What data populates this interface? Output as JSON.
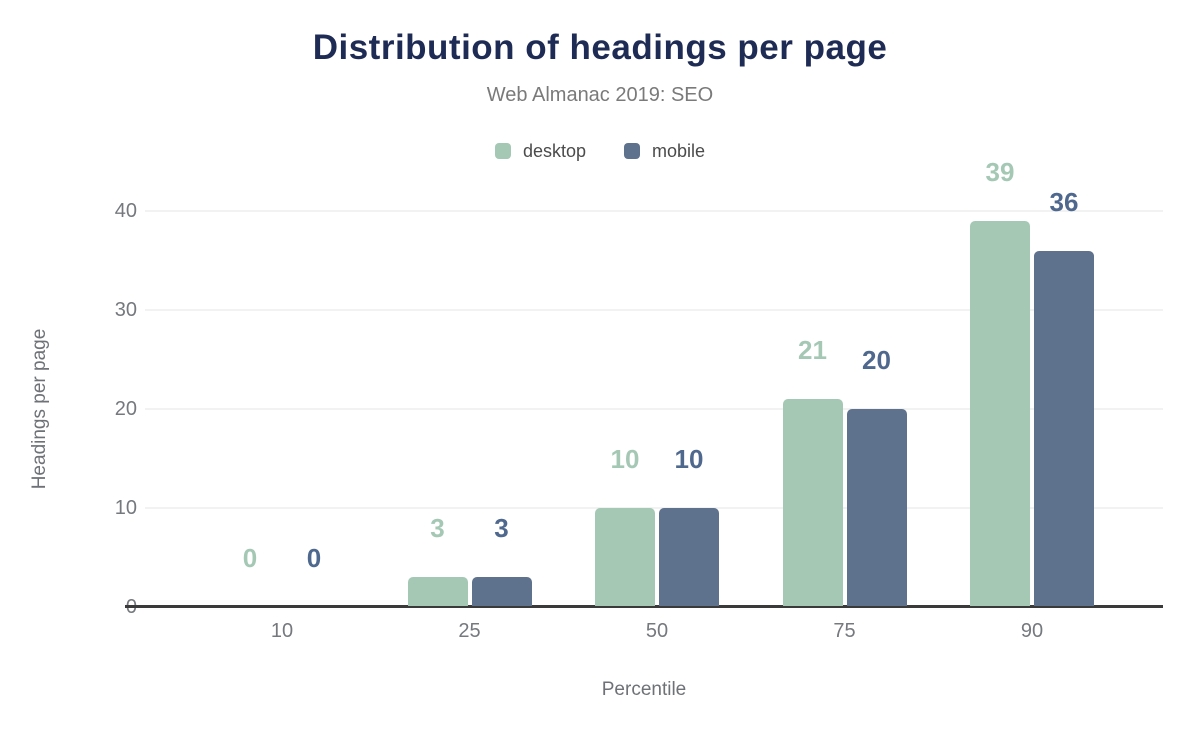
{
  "header": {
    "title": "Distribution of headings per page",
    "subtitle": "Web Almanac 2019: SEO"
  },
  "colors": {
    "background": "#ffffff",
    "title_text": "#1e2b54",
    "subtitle_text": "#7a7a7a",
    "tick_text": "#75797e",
    "axis_title_text": "#6e7277",
    "legend_text": "#4b4b4b",
    "gridline": "#f2f2f2",
    "axis_baseline": "#3a3a3a",
    "desktop": "#a5c8b5",
    "mobile": "#5e718d"
  },
  "legend": {
    "items": [
      {
        "label": "desktop",
        "swatch_color": "#a5c8b5",
        "icon": "legend-swatch-icon"
      },
      {
        "label": "mobile",
        "swatch_color": "#5e718d",
        "icon": "legend-swatch-icon"
      }
    ]
  },
  "chart_data": {
    "type": "bar",
    "title": "Distribution of headings per page",
    "subtitle": "Web Almanac 2019: SEO",
    "categories": [
      "10",
      "25",
      "50",
      "75",
      "90"
    ],
    "series": [
      {
        "name": "desktop",
        "color": "#a5c8b5",
        "label_color": "#a5c8b5",
        "values": [
          0,
          3,
          10,
          21,
          39
        ]
      },
      {
        "name": "mobile",
        "color": "#5e718d",
        "label_color": "#4f688e",
        "values": [
          0,
          3,
          10,
          20,
          36
        ]
      }
    ],
    "data_labels_shown": true,
    "xlabel": "Percentile",
    "ylabel": "Headings per page",
    "y_ticks": [
      0,
      10,
      20,
      30,
      40
    ],
    "ylim": [
      0,
      40
    ],
    "grid": true,
    "legend_position": "top"
  }
}
